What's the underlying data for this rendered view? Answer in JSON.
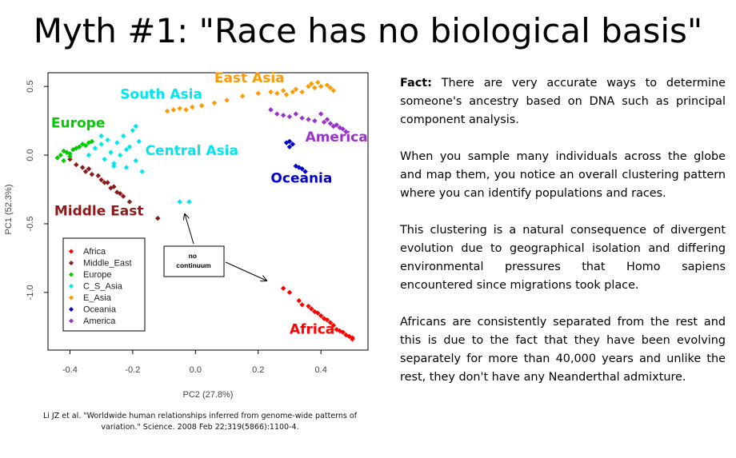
{
  "slide": {
    "title": "Myth #1: \"Race has no biological basis\"",
    "citation": "Li JZ et al. \"Worldwide human relationships inferred from genome-wide patterns of variation.\" Science. 2008 Feb 22;319(5866):1100-4.",
    "fact_label": "Fact:",
    "paragraphs": [
      "There are very accurate ways to determine someone's ancestry based on DNA such as principal component analysis.",
      "When you sample many individuals across the globe and map them, you notice an overall clustering pattern where you can identify populations and races.",
      "This clustering is a natural consequence of divergent evolution due to geographical isolation and differing environmental pressures that Homo sapiens encountered since migrations took place.",
      "Africans are consistently separated from the rest and this is due to the fact that they have been evolving separately for more than 40,000 years and unlike the rest, they don't have any Neanderthal admixture."
    ]
  },
  "chart_data": {
    "type": "scatter",
    "xlabel": "PC2 (27.8%)",
    "ylabel": "PC1 (52.3%)",
    "xlim": [
      -0.47,
      0.55
    ],
    "ylim": [
      -1.42,
      0.6
    ],
    "xticks": [
      -0.4,
      -0.2,
      0.0,
      0.2,
      0.4
    ],
    "xtick_labels": [
      "-0.4",
      "-0.2",
      "0.0",
      "0.2",
      "0.4"
    ],
    "yticks": [
      0.5,
      0.0,
      -0.5,
      -1.0
    ],
    "ytick_labels": [
      "0.5",
      "0.0",
      "-0.5",
      "-1.0"
    ],
    "legend": {
      "placement": "bottom-left",
      "entries": [
        {
          "name": "Africa",
          "color": "#ff0000"
        },
        {
          "name": "Middle_East",
          "color": "#8b1a1a"
        },
        {
          "name": "Europe",
          "color": "#00cc00"
        },
        {
          "name": "C_S_Asia",
          "color": "#00e5ee"
        },
        {
          "name": "E_Asia",
          "color": "#ff9900"
        },
        {
          "name": "Oceania",
          "color": "#0000cc"
        },
        {
          "name": "America",
          "color": "#9933cc"
        }
      ]
    },
    "series": [
      {
        "name": "Africa",
        "color": "#ff0000",
        "x": [
          0.28,
          0.3,
          0.33,
          0.34,
          0.36,
          0.37,
          0.38,
          0.39,
          0.4,
          0.41,
          0.42,
          0.43,
          0.44,
          0.45,
          0.46,
          0.47,
          0.48,
          0.49,
          0.5,
          0.5
        ],
        "y": [
          -0.97,
          -1.0,
          -1.06,
          -1.09,
          -1.1,
          -1.12,
          -1.14,
          -1.15,
          -1.17,
          -1.19,
          -1.2,
          -1.22,
          -1.24,
          -1.27,
          -1.28,
          -1.29,
          -1.31,
          -1.32,
          -1.33,
          -1.34
        ]
      },
      {
        "name": "Middle_East",
        "color": "#8b1a1a",
        "x": [
          -0.4,
          -0.38,
          -0.36,
          -0.35,
          -0.34,
          -0.33,
          -0.31,
          -0.3,
          -0.29,
          -0.28,
          -0.27,
          -0.26,
          -0.25,
          -0.24,
          -0.23,
          -0.21,
          -0.12
        ],
        "y": [
          -0.03,
          -0.07,
          -0.09,
          -0.12,
          -0.1,
          -0.14,
          -0.15,
          -0.18,
          -0.2,
          -0.2,
          -0.24,
          -0.23,
          -0.27,
          -0.28,
          -0.3,
          -0.34,
          -0.46
        ]
      },
      {
        "name": "Europe",
        "color": "#00cc00",
        "x": [
          -0.44,
          -0.43,
          -0.42,
          -0.41,
          -0.4,
          -0.39,
          -0.38,
          -0.37,
          -0.36,
          -0.35,
          -0.34,
          -0.33,
          -0.42,
          -0.4
        ],
        "y": [
          -0.02,
          0.0,
          -0.04,
          0.02,
          0.01,
          0.04,
          0.05,
          0.06,
          0.08,
          0.07,
          0.09,
          0.1,
          0.03,
          -0.01
        ]
      },
      {
        "name": "C_S_Asia",
        "color": "#00e5ee",
        "x": [
          -0.34,
          -0.32,
          -0.3,
          -0.29,
          -0.28,
          -0.27,
          -0.26,
          -0.25,
          -0.24,
          -0.23,
          -0.22,
          -0.21,
          -0.2,
          -0.19,
          -0.18,
          -0.17,
          -0.3,
          -0.26,
          -0.22,
          -0.19,
          -0.05,
          -0.02
        ],
        "y": [
          0.0,
          0.05,
          0.08,
          -0.03,
          0.11,
          0.02,
          -0.06,
          0.09,
          0.0,
          0.14,
          -0.09,
          0.06,
          0.18,
          -0.04,
          0.1,
          -0.12,
          0.14,
          -0.08,
          0.04,
          0.21,
          -0.34,
          -0.34
        ]
      },
      {
        "name": "E_Asia",
        "color": "#ff9900",
        "x": [
          -0.09,
          -0.07,
          -0.05,
          -0.03,
          -0.01,
          0.02,
          0.06,
          0.1,
          0.15,
          0.2,
          0.24,
          0.26,
          0.28,
          0.29,
          0.31,
          0.32,
          0.34,
          0.36,
          0.37,
          0.38,
          0.39,
          0.4,
          0.42,
          0.43,
          0.44
        ],
        "y": [
          0.32,
          0.33,
          0.34,
          0.33,
          0.35,
          0.36,
          0.38,
          0.4,
          0.43,
          0.45,
          0.46,
          0.45,
          0.47,
          0.44,
          0.46,
          0.48,
          0.46,
          0.5,
          0.52,
          0.49,
          0.53,
          0.5,
          0.51,
          0.49,
          0.47
        ]
      },
      {
        "name": "Oceania",
        "color": "#0000cc",
        "x": [
          0.29,
          0.3,
          0.31,
          0.32,
          0.33,
          0.34,
          0.35,
          0.3
        ],
        "y": [
          0.09,
          0.06,
          0.08,
          -0.08,
          -0.09,
          -0.1,
          -0.12,
          0.1
        ]
      },
      {
        "name": "America",
        "color": "#9933cc",
        "x": [
          0.24,
          0.26,
          0.28,
          0.3,
          0.32,
          0.34,
          0.36,
          0.38,
          0.4,
          0.41,
          0.42,
          0.43,
          0.44,
          0.45,
          0.46,
          0.47,
          0.48
        ],
        "y": [
          0.33,
          0.3,
          0.29,
          0.28,
          0.3,
          0.27,
          0.26,
          0.25,
          0.3,
          0.24,
          0.26,
          0.23,
          0.21,
          0.22,
          0.2,
          0.19,
          0.17
        ]
      }
    ],
    "annotations": [
      {
        "text": "Africa",
        "x": 0.3,
        "y": -1.3,
        "color": "#ff0000"
      },
      {
        "text": "Middle East",
        "x": -0.45,
        "y": -0.44,
        "color": "#8b1a1a"
      },
      {
        "text": "Europe",
        "x": -0.46,
        "y": 0.2,
        "color": "#00cc00"
      },
      {
        "text": "South Asia",
        "x": -0.24,
        "y": 0.41,
        "color": "#00e5ee"
      },
      {
        "text": "Central Asia",
        "x": -0.16,
        "y": 0.0,
        "color": "#00e5ee"
      },
      {
        "text": "East Asia",
        "x": 0.06,
        "y": 0.53,
        "color": "#ff9900"
      },
      {
        "text": "America",
        "x": 0.35,
        "y": 0.1,
        "color": "#9933cc"
      },
      {
        "text": "Oceania",
        "x": 0.24,
        "y": -0.2,
        "color": "#0000cc"
      }
    ],
    "callout": "no continuum"
  }
}
